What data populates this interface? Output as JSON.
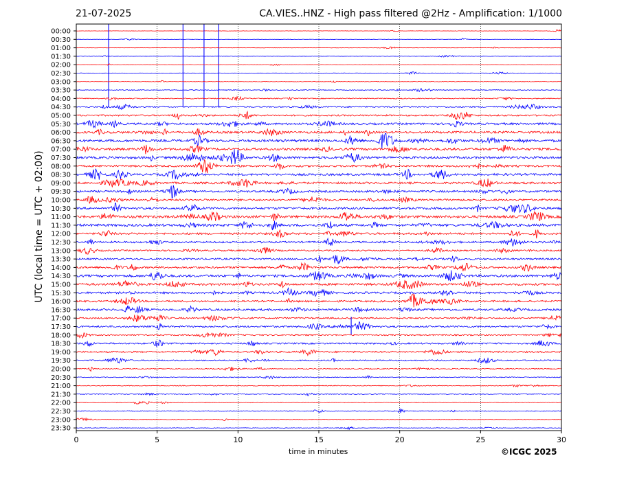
{
  "header": {
    "date": "21-07-2025",
    "title": "CA.VIES..HNZ - High pass filtered @2Hz - Amplification: 1/1000"
  },
  "footer": {
    "copyright": "©ICGC 2025"
  },
  "chart_data": {
    "type": "line",
    "title": "CA.VIES..HNZ - High pass filtered @2Hz - Amplification: 1/1000",
    "xlabel": "time in minutes",
    "ylabel": "UTC (local time = UTC + 02:00)",
    "xlim": [
      0,
      30
    ],
    "xticks": [
      0,
      5,
      10,
      15,
      20,
      25,
      30
    ],
    "grid": "vertical dotted lines at each x tick",
    "line_colors": [
      "#ff0000",
      "#0000ff"
    ],
    "row_labels": [
      "00:00",
      "00:30",
      "01:00",
      "01:30",
      "02:00",
      "02:30",
      "03:00",
      "03:30",
      "04:00",
      "04:30",
      "05:00",
      "05:30",
      "06:00",
      "06:30",
      "07:00",
      "07:30",
      "08:00",
      "08:30",
      "09:00",
      "09:30",
      "10:00",
      "10:30",
      "11:00",
      "11:30",
      "12:00",
      "12:30",
      "13:00",
      "13:30",
      "14:00",
      "14:30",
      "15:00",
      "15:30",
      "16:00",
      "16:30",
      "17:00",
      "17:30",
      "18:00",
      "18:30",
      "19:00",
      "19:30",
      "20:00",
      "20:30",
      "21:00",
      "21:30",
      "22:00",
      "22:30",
      "23:00",
      "23:30"
    ],
    "noise_level": [
      0.2,
      0.2,
      0.2,
      0.2,
      0.2,
      0.3,
      0.3,
      0.5,
      0.6,
      0.8,
      1.0,
      1.3,
      1.4,
      1.6,
      1.5,
      1.5,
      1.3,
      1.4,
      1.3,
      1.3,
      1.2,
      1.4,
      1.6,
      1.6,
      1.3,
      1.2,
      1.0,
      1.1,
      1.3,
      1.5,
      1.4,
      1.3,
      1.2,
      1.3,
      1.0,
      1.1,
      0.9,
      1.0,
      1.0,
      0.8,
      0.6,
      0.5,
      0.5,
      0.5,
      0.4,
      0.5,
      0.3,
      0.3
    ],
    "large_spikes": [
      {
        "row": "00:30",
        "minute": 2.0
      },
      {
        "row": "00:30",
        "minute": 6.6
      },
      {
        "row": "00:30",
        "minute": 7.9
      },
      {
        "row": "00:30",
        "minute": 8.8
      },
      {
        "row": "17:30",
        "minute": 17.0
      }
    ]
  }
}
